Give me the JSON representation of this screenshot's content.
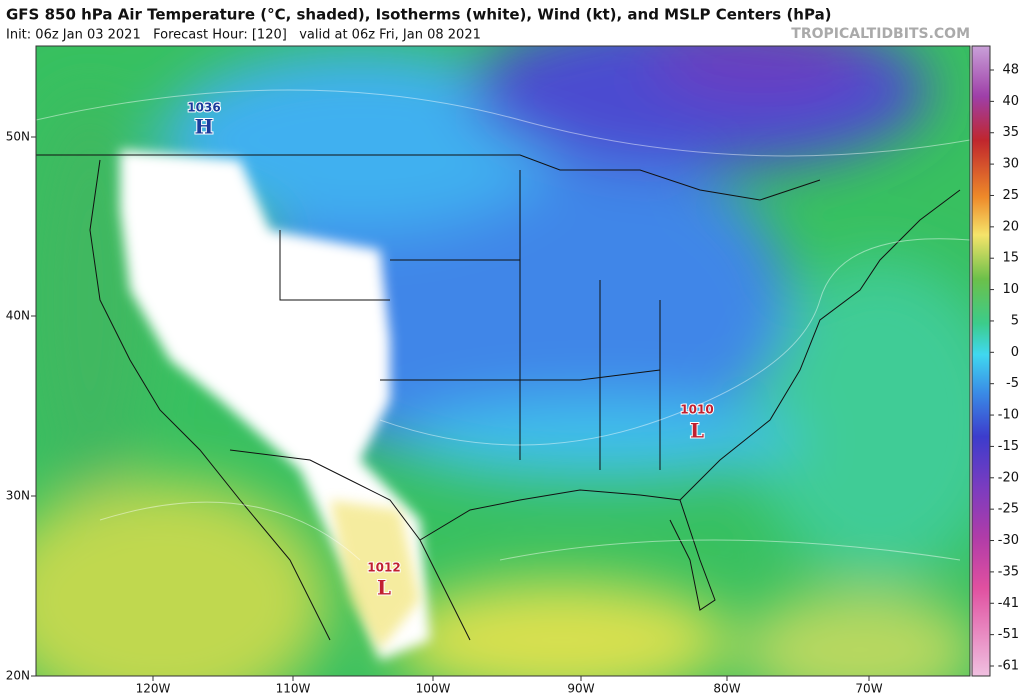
{
  "header": {
    "title": "GFS 850 hPa Air Temperature (°C, shaded), Isotherms (white), Wind (kt), and MSLP Centers (hPa)",
    "subtitle": "Init: 06z Jan 03 2021   Forecast Hour: [120]   valid at 06z Fri, Jan 08 2021",
    "source": "TROPICALTIDBITS.COM"
  },
  "colorbar": {
    "labels": [
      48,
      40,
      35,
      30,
      25,
      20,
      15,
      10,
      5,
      0,
      -5,
      -10,
      -15,
      -20,
      -25,
      -30,
      -35,
      -41,
      -51,
      -61
    ]
  },
  "latitudes": [
    "50N",
    "40N",
    "30N",
    "20N"
  ],
  "longitudes": [
    "120W",
    "110W",
    "100W",
    "90W",
    "80W",
    "70W"
  ],
  "pressure_centers": [
    {
      "value": "1036",
      "letter": "H"
    },
    {
      "value": "1010",
      "letter": "L"
    },
    {
      "value": "1012",
      "letter": "L"
    }
  ]
}
